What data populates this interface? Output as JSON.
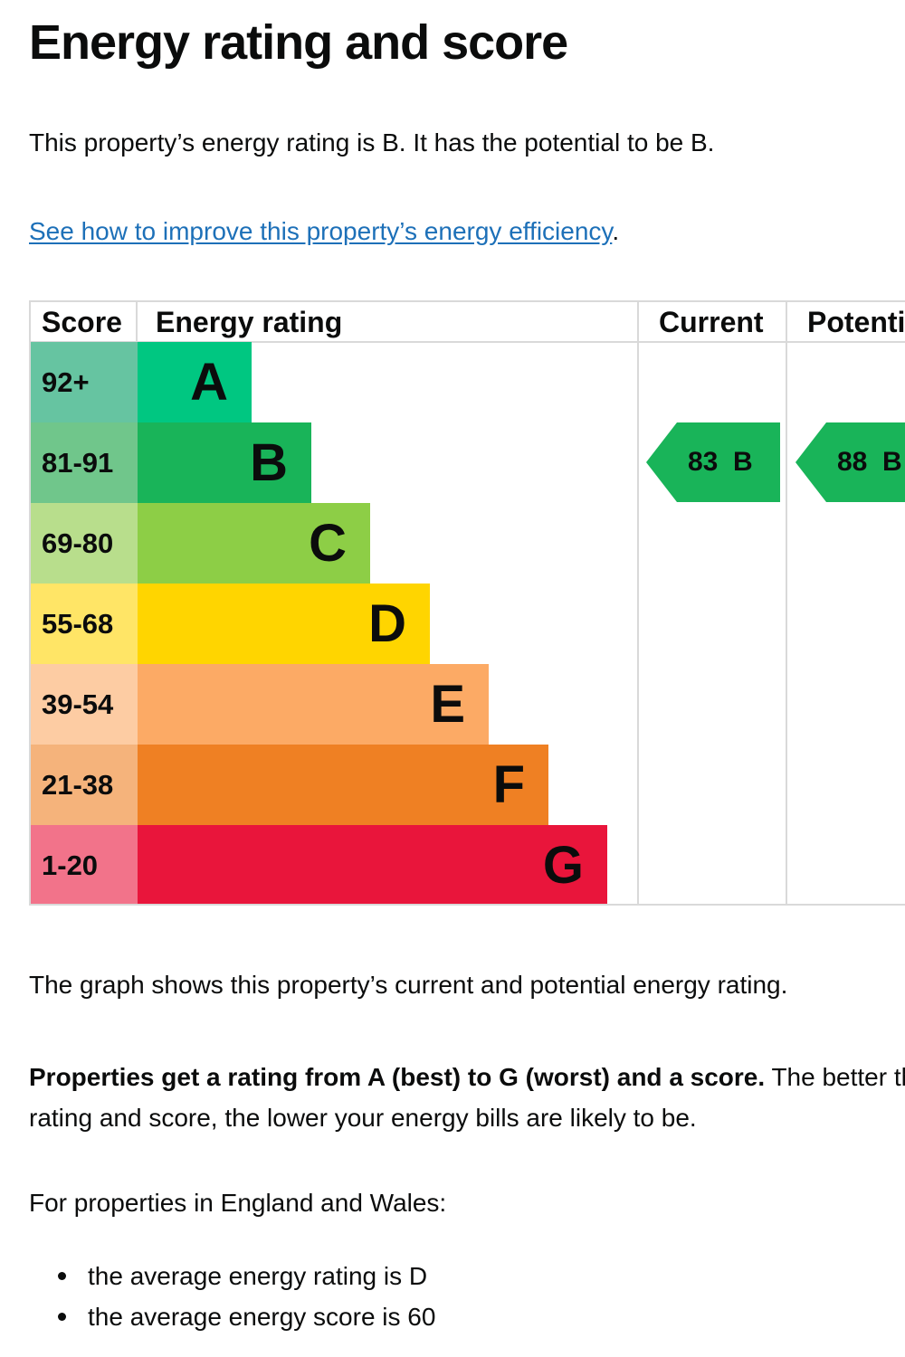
{
  "title": "Energy rating and score",
  "intro": "This property’s energy rating is B. It has the potential to be B.",
  "improve_link": {
    "text": "See how to improve this property’s energy efficiency",
    "suffix": "."
  },
  "chart": {
    "headers": {
      "score": "Score",
      "rating": "Energy rating",
      "current": "Current",
      "potential": "Potenti"
    },
    "bands": [
      {
        "score": "92+",
        "letter": "A",
        "bar_color": "#00c781",
        "score_color": "#66c4a1"
      },
      {
        "score": "81-91",
        "letter": "B",
        "bar_color": "#19b459",
        "score_color": "#70c68b"
      },
      {
        "score": "69-80",
        "letter": "C",
        "bar_color": "#8dce46",
        "score_color": "#b8de8c"
      },
      {
        "score": "55-68",
        "letter": "D",
        "bar_color": "#ffd500",
        "score_color": "#ffe566"
      },
      {
        "score": "39-54",
        "letter": "E",
        "bar_color": "#fcaa65",
        "score_color": "#fdcca3"
      },
      {
        "score": "21-38",
        "letter": "F",
        "bar_color": "#ef8023",
        "score_color": "#f5b37b"
      },
      {
        "score": "1-20",
        "letter": "G",
        "bar_color": "#e9153b",
        "score_color": "#f2738a"
      }
    ],
    "current": {
      "label": "83  B",
      "band": "B",
      "color": "#19b459"
    },
    "potential": {
      "label": "88  B",
      "band": "B",
      "color": "#19b459"
    }
  },
  "graph_note": "The graph shows this property’s current and potential energy rating.",
  "properties": {
    "bold": "Properties get a rating from A (best) to G (worst) and a score.",
    "rest": " The better the rating and score, the lower your energy bills are likely to be."
  },
  "england_wales": "For properties in England and Wales:",
  "averages": [
    "the average energy rating is D",
    "the average energy score is 60"
  ]
}
